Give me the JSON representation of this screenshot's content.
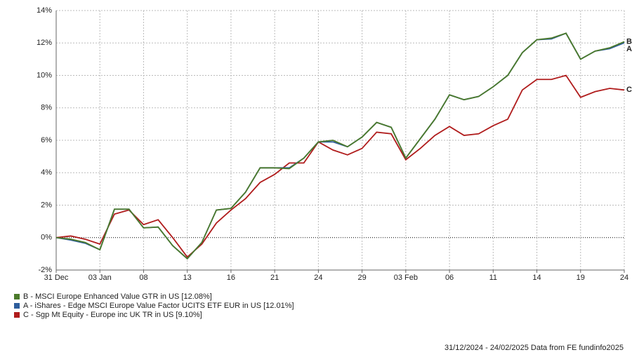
{
  "chart_data": {
    "type": "line",
    "x": [
      "31 Dec",
      null,
      null,
      "03 Jan",
      null,
      null,
      "08",
      null,
      null,
      "13",
      null,
      null,
      "16",
      null,
      null,
      "21",
      null,
      null,
      "24",
      null,
      null,
      "29",
      null,
      null,
      "03 Feb",
      null,
      null,
      "06",
      null,
      null,
      "11",
      null,
      null,
      "14",
      null,
      null,
      "19",
      null,
      null,
      "24"
    ],
    "ylim": [
      -2,
      14
    ],
    "yticks": [
      {
        "value": -2,
        "label": "-2%"
      },
      {
        "value": 0,
        "label": "0%"
      },
      {
        "value": 2,
        "label": "2%"
      },
      {
        "value": 4,
        "label": "4%"
      },
      {
        "value": 6,
        "label": "6%"
      },
      {
        "value": 8,
        "label": "8%"
      },
      {
        "value": 10,
        "label": "10%"
      },
      {
        "value": 12,
        "label": "12%"
      },
      {
        "value": 14,
        "label": "14%"
      }
    ],
    "grid": true,
    "series": [
      {
        "name": "B - MSCI Europe Enhanced Value GTR in US [12.08%]",
        "end_label": "B",
        "color": "#4b7a2b",
        "values": [
          0,
          -0.1,
          -0.3,
          -0.75,
          1.75,
          1.75,
          0.6,
          0.65,
          -0.5,
          -1.3,
          -0.3,
          1.7,
          1.8,
          2.8,
          4.3,
          4.3,
          4.25,
          4.9,
          5.9,
          6.0,
          5.6,
          6.2,
          7.1,
          6.8,
          4.9,
          6.1,
          7.3,
          8.8,
          8.5,
          8.7,
          9.3,
          10.0,
          11.4,
          12.2,
          12.3,
          12.6,
          11.0,
          11.5,
          11.7,
          12.08
        ]
      },
      {
        "name": "A - iShares - Edge MSCI Europe Value Factor UCITS ETF EUR in US [12.01%]",
        "end_label": "A",
        "color": "#2e5d9c",
        "values": [
          0,
          -0.15,
          -0.35,
          -0.75,
          1.75,
          1.75,
          0.6,
          0.65,
          -0.5,
          -1.3,
          -0.3,
          1.7,
          1.8,
          2.8,
          4.3,
          4.3,
          4.3,
          4.9,
          5.9,
          5.9,
          5.6,
          6.2,
          7.1,
          6.8,
          4.9,
          6.1,
          7.3,
          8.8,
          8.5,
          8.7,
          9.3,
          10.0,
          11.4,
          12.2,
          12.25,
          12.6,
          11.0,
          11.5,
          11.65,
          12.01
        ]
      },
      {
        "name": "C - Sgp Mt Equity - Europe inc UK TR in US [9.10%]",
        "end_label": "C",
        "color": "#b01c1c",
        "values": [
          0,
          0.1,
          -0.1,
          -0.4,
          1.45,
          1.7,
          0.8,
          1.1,
          0.0,
          -1.2,
          -0.4,
          0.9,
          1.7,
          2.4,
          3.4,
          3.9,
          4.6,
          4.6,
          5.9,
          5.4,
          5.1,
          5.5,
          6.5,
          6.4,
          4.8,
          5.5,
          6.3,
          6.85,
          6.3,
          6.4,
          6.9,
          7.3,
          9.1,
          9.75,
          9.75,
          10.0,
          8.65,
          9.0,
          9.2,
          9.1
        ]
      }
    ],
    "footer": "31/12/2024 - 24/02/2025 Data from FE fundinfo2025"
  }
}
